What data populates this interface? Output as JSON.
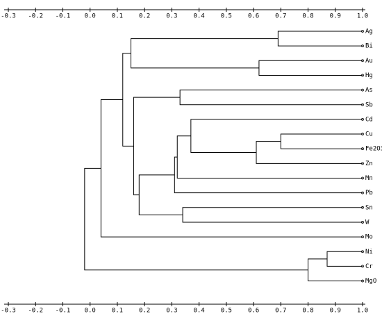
{
  "chart_data": {
    "type": "dendrogram",
    "leaves": [
      "Ag",
      "Bi",
      "Au",
      "Hg",
      "As",
      "Sb",
      "Cd",
      "Cu",
      "Fe2O3",
      "Zn",
      "Mn",
      "Pb",
      "Sn",
      "W",
      "Mo",
      "Ni",
      "Cr",
      "MgO"
    ],
    "merges": [
      [
        0,
        1,
        0.69
      ],
      [
        2,
        3,
        0.62
      ],
      [
        4,
        5,
        0.33
      ],
      [
        7,
        8,
        0.7
      ],
      [
        21,
        9,
        0.61
      ],
      [
        6,
        22,
        0.37
      ],
      [
        23,
        10,
        0.32
      ],
      [
        24,
        11,
        0.31
      ],
      [
        12,
        13,
        0.34
      ],
      [
        25,
        26,
        0.18
      ],
      [
        20,
        27,
        0.16
      ],
      [
        18,
        19,
        0.15
      ],
      [
        29,
        28,
        0.12
      ],
      [
        30,
        14,
        0.04
      ],
      [
        15,
        16,
        0.87
      ],
      [
        32,
        17,
        0.8
      ],
      [
        31,
        33,
        -0.02
      ]
    ],
    "xlim": [
      -0.3,
      1.0
    ],
    "xticks": [
      -0.3,
      -0.2,
      -0.1,
      {
        "value": 0,
        "label": "0.0"
      },
      0.1,
      0.2,
      0.3,
      0.4,
      0.5,
      0.6,
      0.7,
      0.8,
      0.9,
      {
        "value": 1,
        "label": "1.0"
      }
    ]
  }
}
